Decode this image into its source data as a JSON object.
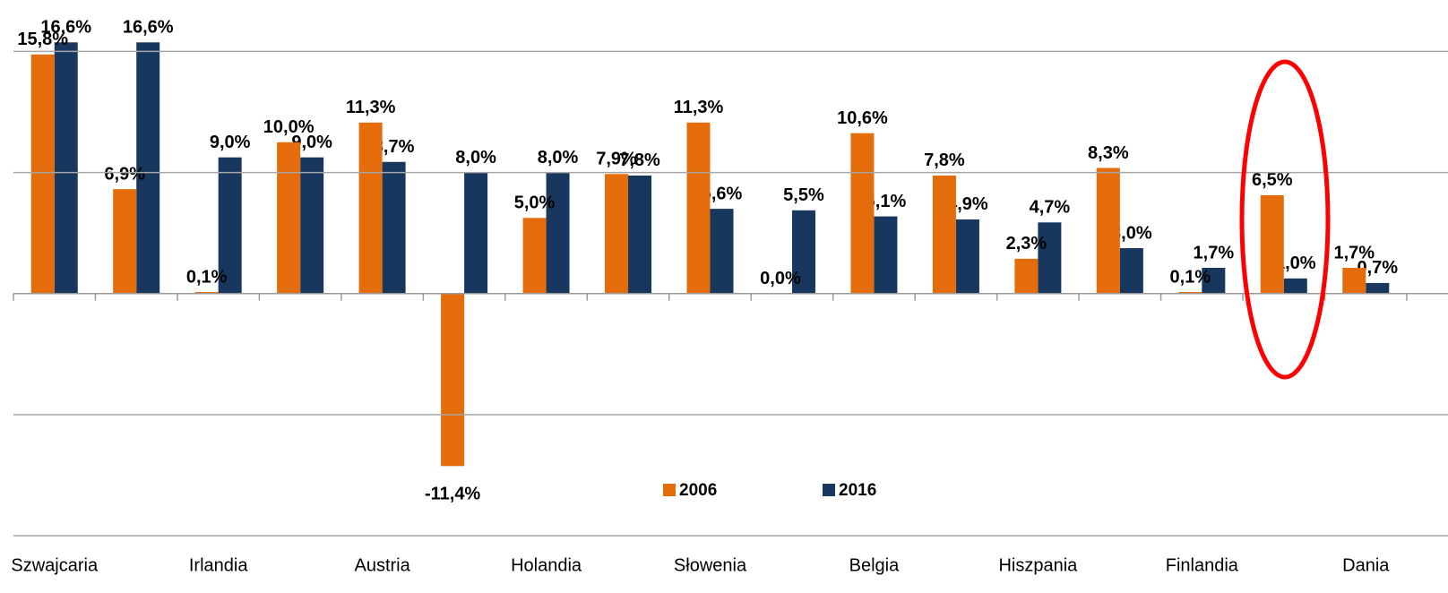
{
  "chart_data": {
    "type": "bar",
    "categories": [
      "Szwajcaria",
      null,
      "Irlandia",
      null,
      "Austria",
      null,
      "Holandia",
      null,
      "Słowenia",
      null,
      "Belgia",
      null,
      "Hiszpania",
      null,
      "Finlandia",
      null,
      "Dania"
    ],
    "series": [
      {
        "name": "2006",
        "color": "#e46c0a",
        "values": [
          15.8,
          6.9,
          0.1,
          10.0,
          11.3,
          -11.4,
          5.0,
          7.9,
          11.3,
          0.0,
          10.6,
          7.8,
          2.3,
          8.3,
          0.1,
          6.5,
          1.7
        ],
        "value_labels": [
          "15,8%",
          "6,9%",
          "0,1%",
          "10,0%",
          "11,3%",
          "-11,4%",
          "5,0%",
          "7,9%",
          "11,3%",
          "0,0%",
          "10,6%",
          "7,8%",
          "2,3%",
          "8,3%",
          "0,1%",
          "6,5%",
          "1,7%"
        ]
      },
      {
        "name": "2016",
        "color": "#17375e",
        "values": [
          16.6,
          16.6,
          9.0,
          9.0,
          8.7,
          8.0,
          8.0,
          7.8,
          5.6,
          5.5,
          5.1,
          4.9,
          4.7,
          3.0,
          1.7,
          1.0,
          0.7
        ],
        "value_labels": [
          "16,6%",
          "16,6%",
          "9,0%",
          "9,0%",
          "8,7%",
          "8,0%",
          "8,0%",
          "7,8%",
          "5,6%",
          "5,5%",
          "5,1%",
          "4,9%",
          "4,7%",
          "3,0%",
          "1,7%",
          "1,0%",
          "0,7%"
        ]
      }
    ],
    "ylim": [
      -16,
      19.4
    ],
    "yticks": [
      -16,
      -8,
      0,
      8,
      16
    ],
    "grid": true
  }
}
